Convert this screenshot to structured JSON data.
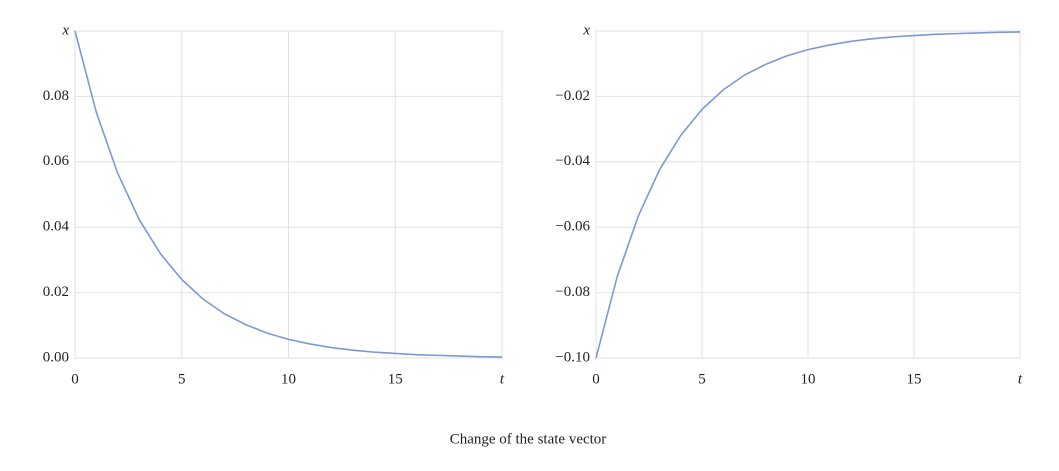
{
  "chart_data": [
    {
      "type": "line",
      "x": [
        0,
        1,
        2,
        3,
        4,
        5,
        6,
        7,
        8,
        9,
        10,
        11,
        12,
        13,
        14,
        15,
        16,
        17,
        18,
        19,
        20
      ],
      "series": [
        {
          "color": "#7b9ad4",
          "values": [
            0.1,
            0.0751,
            0.0565,
            0.0424,
            0.0319,
            0.024,
            0.018,
            0.0135,
            0.0102,
            0.0076,
            0.0057,
            0.0043,
            0.0032,
            0.0024,
            0.0018,
            0.0014,
            0.001,
            0.0008,
            0.0006,
            0.0004,
            0.0003
          ]
        }
      ],
      "xlim": [
        0,
        20
      ],
      "xticks": [
        0,
        5,
        10,
        15,
        {
          "value": 20,
          "label": "t"
        }
      ],
      "ylim": [
        0,
        0.1
      ],
      "yticks": [
        {
          "value": 0,
          "label": "0.00"
        },
        0.02,
        0.04,
        0.06,
        0.08,
        {
          "value": 0.1,
          "label": "x"
        }
      ],
      "grid": true
    },
    {
      "type": "line",
      "x": [
        0,
        1,
        2,
        3,
        4,
        5,
        6,
        7,
        8,
        9,
        10,
        11,
        12,
        13,
        14,
        15,
        16,
        17,
        18,
        19,
        20
      ],
      "series": [
        {
          "color": "#7b9ad4",
          "values": [
            -0.1,
            -0.0751,
            -0.0565,
            -0.0424,
            -0.0319,
            -0.024,
            -0.018,
            -0.0135,
            -0.0102,
            -0.0076,
            -0.0057,
            -0.0043,
            -0.0032,
            -0.0024,
            -0.0018,
            -0.0014,
            -0.001,
            -0.0008,
            -0.0006,
            -0.0004,
            -0.0003
          ]
        }
      ],
      "xlim": [
        0,
        20
      ],
      "xticks": [
        0,
        5,
        10,
        15,
        {
          "value": 20,
          "label": "t"
        }
      ],
      "ylim": [
        -0.1,
        0
      ],
      "yticks": [
        {
          "value": -0.1,
          "label": "−0.10"
        },
        {
          "value": -0.08,
          "label": "−0.08"
        },
        {
          "value": -0.06,
          "label": "−0.06"
        },
        {
          "value": -0.04,
          "label": "−0.04"
        },
        {
          "value": -0.02,
          "label": "−0.02"
        },
        {
          "value": 0,
          "label": "x"
        }
      ],
      "grid": true
    }
  ],
  "caption": "Change of the state vector"
}
